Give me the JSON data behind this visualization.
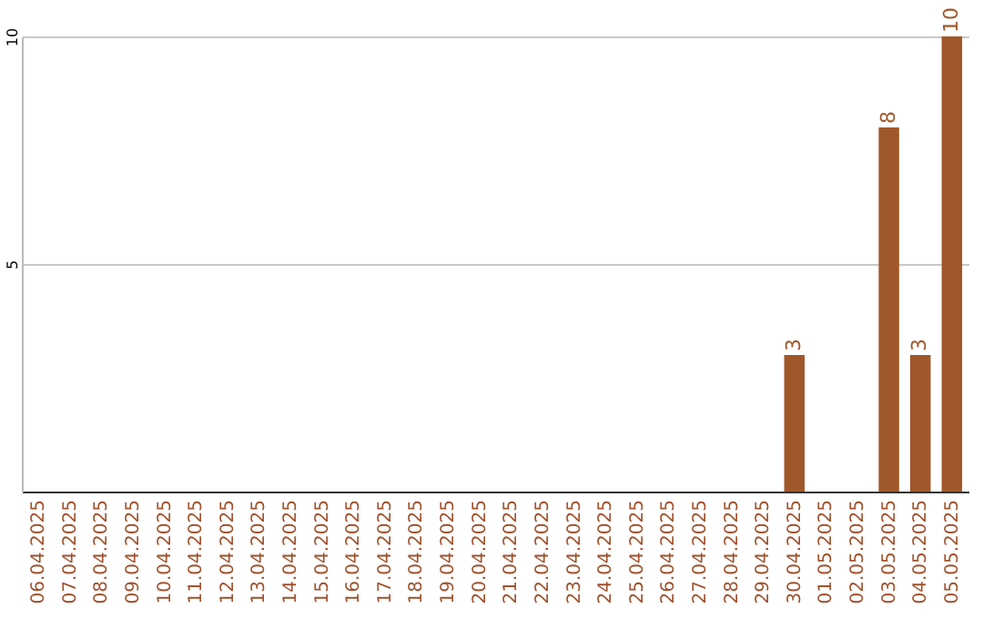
{
  "chart_data": {
    "type": "bar",
    "categories": [
      "06.04.2025",
      "07.04.2025",
      "08.04.2025",
      "09.04.2025",
      "10.04.2025",
      "11.04.2025",
      "12.04.2025",
      "13.04.2025",
      "14.04.2025",
      "15.04.2025",
      "16.04.2025",
      "17.04.2025",
      "18.04.2025",
      "19.04.2025",
      "20.04.2025",
      "21.04.2025",
      "22.04.2025",
      "23.04.2025",
      "24.04.2025",
      "25.04.2025",
      "26.04.2025",
      "27.04.2025",
      "28.04.2025",
      "29.04.2025",
      "30.04.2025",
      "01.05.2025",
      "02.05.2025",
      "03.05.2025",
      "04.05.2025",
      "05.05.2025"
    ],
    "values": [
      0,
      0,
      0,
      0,
      0,
      0,
      0,
      0,
      0,
      0,
      0,
      0,
      0,
      0,
      0,
      0,
      0,
      0,
      0,
      0,
      0,
      0,
      0,
      0,
      3,
      0,
      0,
      8,
      3,
      10
    ],
    "value_labels": [
      null,
      null,
      null,
      null,
      null,
      null,
      null,
      null,
      null,
      null,
      null,
      null,
      null,
      null,
      null,
      null,
      null,
      null,
      null,
      null,
      null,
      null,
      null,
      null,
      "3",
      null,
      null,
      "8",
      "3",
      "10"
    ],
    "color": "#a0582a",
    "ylim": [
      0,
      10
    ],
    "yticks": [
      5,
      10
    ],
    "grid": "y"
  }
}
